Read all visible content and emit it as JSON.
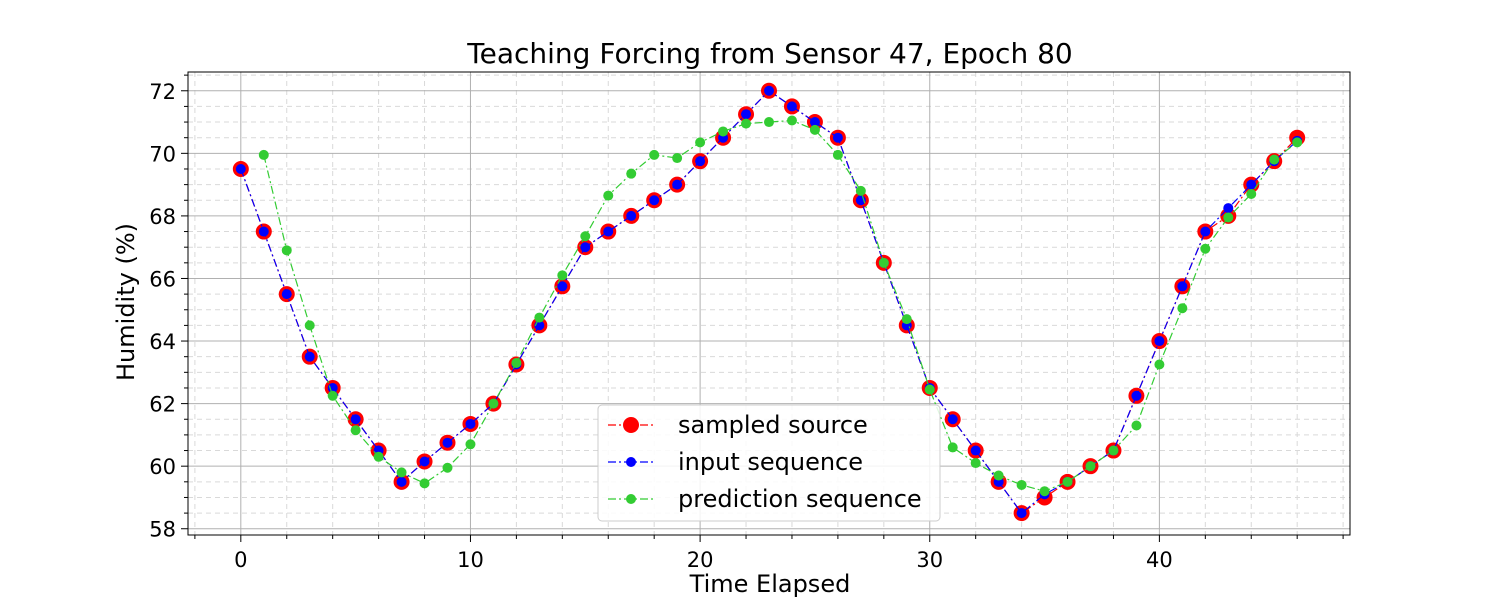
{
  "chart_data": {
    "type": "line",
    "title": "Teaching Forcing from Sensor 47, Epoch 80",
    "xlabel": "Time Elapsed",
    "ylabel": "Humidity (%)",
    "xlim": [
      -2.3,
      48.3
    ],
    "ylim": [
      57.8,
      72.6
    ],
    "x_ticks": [
      0,
      10,
      20,
      30,
      40
    ],
    "y_ticks": [
      58,
      60,
      62,
      64,
      66,
      68,
      70,
      72
    ],
    "grid": true,
    "legend_position": "lower-center",
    "series": [
      {
        "name": "sampled source",
        "color": "#ff0000",
        "marker": "large-circle",
        "x": [
          0,
          1,
          2,
          3,
          4,
          5,
          6,
          7,
          8,
          9,
          10,
          11,
          12,
          13,
          14,
          15,
          16,
          17,
          18,
          19,
          20,
          21,
          22,
          23,
          24,
          25,
          26,
          27,
          28,
          29,
          30,
          31,
          32,
          33,
          34,
          35,
          36,
          37,
          38,
          39,
          40,
          41,
          42,
          43,
          44,
          45,
          46
        ],
        "values": [
          69.5,
          67.5,
          65.5,
          63.5,
          62.5,
          61.5,
          60.5,
          59.5,
          60.15,
          60.75,
          61.35,
          62.0,
          63.25,
          64.5,
          65.75,
          67.0,
          67.5,
          68.0,
          68.5,
          69.0,
          69.75,
          70.5,
          71.25,
          72.0,
          71.5,
          71.0,
          70.5,
          68.5,
          66.5,
          64.5,
          62.5,
          61.5,
          60.5,
          59.5,
          58.5,
          59.0,
          59.5,
          60.0,
          60.5,
          62.25,
          64.0,
          65.75,
          67.5,
          68.0,
          69.0,
          69.75,
          70.5
        ]
      },
      {
        "name": "input sequence",
        "color": "#0000ff",
        "marker": "circle",
        "x": [
          0,
          1,
          2,
          3,
          4,
          5,
          6,
          7,
          8,
          9,
          10,
          11,
          12,
          13,
          14,
          15,
          16,
          17,
          18,
          19,
          20,
          21,
          22,
          23,
          24,
          25,
          26,
          27,
          28,
          29,
          30,
          31,
          32,
          33,
          34,
          35,
          36,
          37,
          38,
          39,
          40,
          41,
          42,
          43,
          44,
          45,
          46
        ],
        "values": [
          69.5,
          67.5,
          65.5,
          63.5,
          62.5,
          61.5,
          60.5,
          59.5,
          60.15,
          60.75,
          61.35,
          62.0,
          63.25,
          64.5,
          65.75,
          67.0,
          67.5,
          68.0,
          68.5,
          69.0,
          69.75,
          70.5,
          71.25,
          72.0,
          71.5,
          71.0,
          70.5,
          68.5,
          66.5,
          64.5,
          62.5,
          61.5,
          60.5,
          59.5,
          58.5,
          59.1,
          59.5,
          60.0,
          60.5,
          62.25,
          64.0,
          65.75,
          67.5,
          68.25,
          69.0,
          69.75,
          70.4
        ]
      },
      {
        "name": "prediction sequence",
        "color": "#33cc33",
        "marker": "circle",
        "x": [
          1,
          2,
          3,
          4,
          5,
          6,
          7,
          8,
          9,
          10,
          11,
          12,
          13,
          14,
          15,
          16,
          17,
          18,
          19,
          20,
          21,
          22,
          23,
          24,
          25,
          26,
          27,
          28,
          29,
          30,
          31,
          32,
          33,
          34,
          35,
          36,
          37,
          38,
          39,
          40,
          41,
          42,
          43,
          44,
          45,
          46
        ],
        "values": [
          69.95,
          66.9,
          64.5,
          62.25,
          61.15,
          60.3,
          59.8,
          59.45,
          59.95,
          60.7,
          62.0,
          63.3,
          64.75,
          66.1,
          67.35,
          68.65,
          69.35,
          69.95,
          69.85,
          70.35,
          70.7,
          70.95,
          71.0,
          71.05,
          70.75,
          69.95,
          68.8,
          66.5,
          64.7,
          62.45,
          60.6,
          60.1,
          59.7,
          59.4,
          59.2,
          59.5,
          60.0,
          60.5,
          61.3,
          63.25,
          65.05,
          66.95,
          67.95,
          68.7,
          69.8,
          70.35
        ]
      }
    ]
  }
}
